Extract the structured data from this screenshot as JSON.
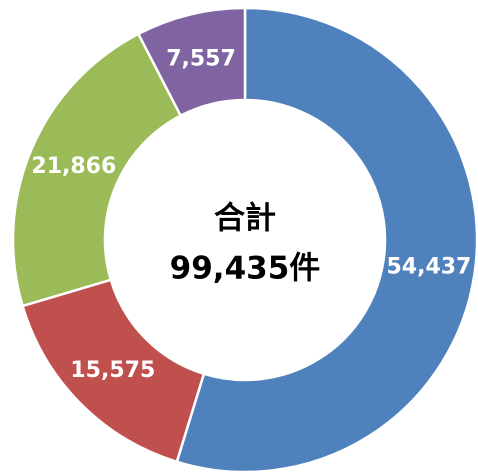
{
  "chart_data": {
    "type": "donut",
    "categories": [
      null,
      null,
      null,
      null
    ],
    "values": [
      54437,
      15575,
      21866,
      7557
    ],
    "value_labels": [
      "54,437",
      "15,575",
      "21,866",
      "7,557"
    ],
    "colors": [
      "#4f81bd",
      "#c0504d",
      "#9bbb59",
      "#8064a2"
    ],
    "center_label": [
      "合計",
      "99,435件"
    ]
  }
}
